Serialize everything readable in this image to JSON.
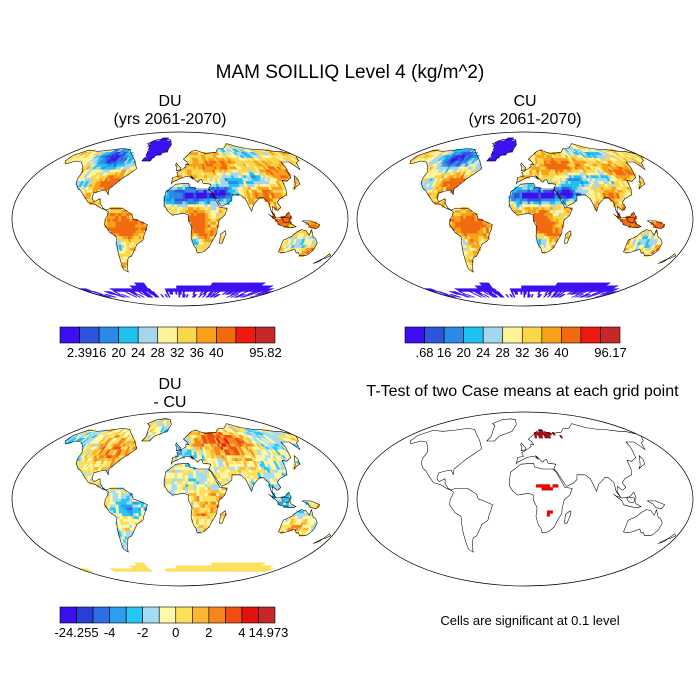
{
  "chart_data": {
    "type": "heatmap",
    "title": "MAM SOILLIQ Level 4 (kg/m^2)",
    "panels": [
      {
        "id": "du",
        "title_line1": "DU",
        "title_line2": "(yrs 2061-2070)",
        "field": "soil liquid water, level 4",
        "colorbar": {
          "min_label": "2.39",
          "max_label": "95.82",
          "tick_labels": [
            "16",
            "20",
            "24",
            "28",
            "32",
            "36",
            "40"
          ],
          "levels": [
            12,
            16,
            20,
            24,
            28,
            32,
            36,
            40
          ]
        }
      },
      {
        "id": "cu",
        "title_line1": "CU",
        "title_line2": "(yrs 2061-2070)",
        "field": "soil liquid water, level 4",
        "colorbar": {
          "min_label": ".68",
          "max_label": "96.17",
          "tick_labels": [
            "16",
            "20",
            "24",
            "28",
            "32",
            "36",
            "40"
          ],
          "levels": [
            12,
            16,
            20,
            24,
            28,
            32,
            36,
            40
          ]
        }
      },
      {
        "id": "diff",
        "title_line1": "DU",
        "title_line2": "- CU",
        "field": "difference DU - CU",
        "colorbar": {
          "min_label": "-24.255",
          "max_label": "14.973",
          "tick_labels": [
            "-4",
            "-2",
            "0",
            "2",
            "4"
          ],
          "levels": [
            -6,
            -5,
            -4,
            -3,
            -2,
            -1,
            0,
            1,
            2,
            3,
            4,
            5,
            6
          ]
        }
      },
      {
        "id": "ttest",
        "title_line1": "T-Test of two Case means at each grid point",
        "note": "Cells are significant at 0.1 level"
      }
    ],
    "colors": {
      "abs_scale": [
        "#3b0ff0",
        "#2f55dc",
        "#2b8ae6",
        "#1ec2f0",
        "#a6d6ee",
        "#fff39a",
        "#fbd54a",
        "#f7a11a",
        "#f16a0f",
        "#ee1a0f",
        "#c5282a"
      ],
      "diff_scale": [
        "#3b0ff0",
        "#2a3fd6",
        "#2d6ee8",
        "#2c9ef0",
        "#27c6f4",
        "#a4dcf3",
        "#fff8a9",
        "#fddf5c",
        "#fbb633",
        "#f6861c",
        "#f04e12",
        "#df1310",
        "#c5282a"
      ],
      "significant": "#ee0000"
    }
  }
}
